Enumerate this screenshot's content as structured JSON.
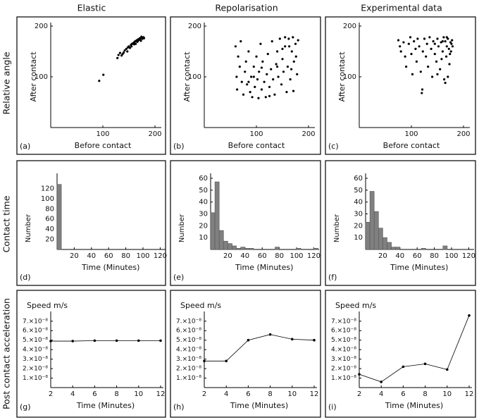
{
  "column_titles": [
    "Elastic",
    "Repolarisation",
    "Experimental data"
  ],
  "row_labels": [
    "Relative angle",
    "Contact time",
    "Post contact acceleration"
  ],
  "chart_data": [
    {
      "type": "scatter",
      "panel_label": "(a)",
      "x_label": "Before contact",
      "y_label": "After contact",
      "color": "#000000",
      "xlim": [
        0,
        200
      ],
      "ylim": [
        0,
        200
      ],
      "xticks": [
        100,
        200
      ],
      "yticks": [
        100,
        200
      ],
      "x": [
        93,
        101,
        128,
        130,
        133,
        136,
        140,
        142,
        145,
        148,
        150,
        152,
        154,
        156,
        158,
        160,
        162,
        163,
        165,
        167,
        168,
        170,
        172,
        173,
        175,
        176,
        178,
        179,
        155,
        160,
        166,
        171,
        174,
        147,
        138
      ],
      "values": [
        92,
        104,
        137,
        143,
        147,
        142,
        148,
        152,
        155,
        158,
        160,
        157,
        163,
        165,
        166,
        168,
        170,
        165,
        172,
        170,
        174,
        173,
        175,
        171,
        177,
        175,
        178,
        176,
        160,
        164,
        169,
        176,
        179,
        150,
        145
      ]
    },
    {
      "type": "scatter",
      "panel_label": "(b)",
      "x_label": "Before contact",
      "y_label": "After contact",
      "color": "#000000",
      "xlim": [
        0,
        200
      ],
      "ylim": [
        0,
        200
      ],
      "xticks": [
        100,
        200
      ],
      "yticks": [
        100,
        200
      ],
      "x": [
        60,
        62,
        63,
        65,
        68,
        70,
        72,
        75,
        78,
        80,
        82,
        85,
        88,
        90,
        92,
        95,
        97,
        100,
        102,
        104,
        105,
        108,
        110,
        112,
        115,
        118,
        120,
        122,
        125,
        128,
        130,
        132,
        135,
        138,
        140,
        142,
        145,
        148,
        150,
        152,
        155,
        158,
        160,
        162,
        165,
        168,
        170,
        172,
        175,
        178,
        180,
        163,
        167,
        171,
        176,
        150,
        140,
        125,
        110,
        95,
        85,
        155
      ],
      "values": [
        160,
        100,
        75,
        140,
        120,
        170,
        90,
        65,
        110,
        130,
        85,
        150,
        70,
        100,
        60,
        120,
        80,
        140,
        95,
        58,
        110,
        165,
        75,
        130,
        90,
        60,
        105,
        145,
        80,
        115,
        170,
        95,
        65,
        125,
        150,
        100,
        175,
        85,
        135,
        110,
        160,
        70,
        120,
        175,
        95,
        150,
        178,
        130,
        165,
        105,
        172,
        160,
        115,
        72,
        140,
        155,
        120,
        62,
        118,
        100,
        90,
        178
      ]
    },
    {
      "type": "scatter",
      "panel_label": "(c)",
      "x_label": "Before contact",
      "y_label": "After contact",
      "color": "#000000",
      "xlim": [
        0,
        200
      ],
      "ylim": [
        0,
        200
      ],
      "xticks": [
        100,
        200
      ],
      "yticks": [
        100,
        200
      ],
      "x": [
        75,
        78,
        80,
        85,
        88,
        90,
        95,
        98,
        100,
        102,
        105,
        108,
        110,
        112,
        115,
        118,
        120,
        121,
        122,
        125,
        128,
        130,
        132,
        135,
        138,
        140,
        142,
        145,
        148,
        150,
        152,
        155,
        157,
        160,
        162,
        163,
        165,
        167,
        168,
        170,
        172,
        173,
        175,
        176,
        178,
        179,
        170,
        165,
        158,
        150,
        145,
        160,
        168,
        174,
        177
      ],
      "values": [
        172,
        160,
        150,
        168,
        140,
        120,
        165,
        178,
        145,
        105,
        170,
        155,
        130,
        175,
        160,
        110,
        68,
        75,
        150,
        175,
        140,
        165,
        120,
        178,
        155,
        100,
        170,
        145,
        130,
        175,
        160,
        115,
        168,
        150,
        178,
        95,
        170,
        140,
        160,
        175,
        155,
        125,
        168,
        150,
        172,
        160,
        100,
        88,
        135,
        105,
        165,
        170,
        178,
        145,
        165
      ]
    },
    {
      "type": "histogram",
      "panel_label": "(d)",
      "x_label": "Time (Minutes)",
      "y_label": "Number",
      "color": "#808080",
      "xlim": [
        0,
        125
      ],
      "ylim": [
        0,
        140
      ],
      "xticks": [
        20,
        40,
        60,
        80,
        100,
        120
      ],
      "yticks": [
        20,
        40,
        60,
        80,
        100,
        120
      ],
      "bins": [
        0,
        5,
        10,
        15,
        20,
        25,
        30,
        35,
        40,
        45,
        50,
        55,
        60,
        65,
        70,
        75,
        80,
        85,
        90,
        95,
        100,
        105,
        110,
        115,
        120,
        125
      ],
      "values": [
        128,
        0,
        0,
        0,
        0,
        0,
        0,
        0,
        0,
        0,
        0,
        0,
        0,
        0,
        0,
        0,
        0,
        0,
        0,
        0,
        0,
        0,
        0,
        0,
        0
      ]
    },
    {
      "type": "histogram",
      "panel_label": "(e)",
      "x_label": "Time (Minutes)",
      "y_label": "Number",
      "color": "#808080",
      "xlim": [
        0,
        125
      ],
      "ylim": [
        0,
        60
      ],
      "xticks": [
        20,
        40,
        60,
        80,
        100,
        120
      ],
      "yticks": [
        10,
        20,
        30,
        40,
        50,
        60
      ],
      "bins": [
        0,
        5,
        10,
        15,
        20,
        25,
        30,
        35,
        40,
        45,
        50,
        55,
        60,
        65,
        70,
        75,
        80,
        85,
        90,
        95,
        100,
        105,
        110,
        115,
        120,
        125
      ],
      "values": [
        31,
        57,
        16,
        7,
        5,
        3,
        1,
        2,
        1,
        1,
        0,
        0,
        0,
        0,
        0,
        2,
        0,
        0,
        0,
        0,
        1,
        0,
        0,
        0,
        1
      ]
    },
    {
      "type": "histogram",
      "panel_label": "(f)",
      "x_label": "Time (Minutes)",
      "y_label": "Number",
      "color": "#808080",
      "xlim": [
        0,
        125
      ],
      "ylim": [
        0,
        60
      ],
      "xticks": [
        20,
        40,
        60,
        80,
        100,
        120
      ],
      "yticks": [
        10,
        20,
        30,
        40,
        50,
        60
      ],
      "bins": [
        0,
        5,
        10,
        15,
        20,
        25,
        30,
        35,
        40,
        45,
        50,
        55,
        60,
        65,
        70,
        75,
        80,
        85,
        90,
        95,
        100,
        105,
        110,
        115,
        120,
        125
      ],
      "values": [
        23,
        49,
        32,
        18,
        10,
        6,
        2,
        2,
        0,
        0,
        0,
        0,
        0,
        1,
        0,
        0,
        0,
        0,
        3,
        0,
        0,
        0,
        0,
        0,
        0
      ]
    },
    {
      "type": "line",
      "panel_label": "(g)",
      "x_label": "Time (Minutes)",
      "y_label": "Speed m/s",
      "color": "#000000",
      "xlim": [
        2,
        12
      ],
      "ylim": [
        0,
        7.8e-08
      ],
      "xticks": [
        2,
        4,
        6,
        8,
        10,
        12
      ],
      "yticks": [
        {
          "value": 1e-08,
          "label": "1.×10⁻⁸"
        },
        {
          "value": 2e-08,
          "label": "2.×10⁻⁸"
        },
        {
          "value": 3e-08,
          "label": "3.×10⁻⁸"
        },
        {
          "value": 4e-08,
          "label": "4.×10⁻⁸"
        },
        {
          "value": 5e-08,
          "label": "5.×10⁻⁸"
        },
        {
          "value": 6e-08,
          "label": "6.×10⁻⁸"
        },
        {
          "value": 7e-08,
          "label": "7.×10⁻⁸"
        }
      ],
      "x": [
        2,
        4,
        6,
        8,
        10,
        12
      ],
      "values": [
        4.9e-08,
        4.9e-08,
        4.95e-08,
        4.95e-08,
        4.95e-08,
        4.95e-08
      ]
    },
    {
      "type": "line",
      "panel_label": "(h)",
      "x_label": "Time (Minutes)",
      "y_label": "Speed m/s",
      "color": "#000000",
      "xlim": [
        2,
        12
      ],
      "ylim": [
        0,
        7.8e-08
      ],
      "xticks": [
        2,
        4,
        6,
        8,
        10,
        12
      ],
      "yticks": [
        {
          "value": 1e-08,
          "label": "1.×10⁻⁸"
        },
        {
          "value": 2e-08,
          "label": "2.×10⁻⁸"
        },
        {
          "value": 3e-08,
          "label": "3.×10⁻⁸"
        },
        {
          "value": 4e-08,
          "label": "4.×10⁻⁸"
        },
        {
          "value": 5e-08,
          "label": "5.×10⁻⁸"
        },
        {
          "value": 6e-08,
          "label": "6.×10⁻⁸"
        },
        {
          "value": 7e-08,
          "label": "7.×10⁻⁸"
        }
      ],
      "x": [
        2,
        4,
        6,
        8,
        10,
        12
      ],
      "values": [
        2.8e-08,
        2.8e-08,
        5e-08,
        5.6e-08,
        5.1e-08,
        5e-08
      ]
    },
    {
      "type": "line",
      "panel_label": "(i)",
      "x_label": "Time (Minutes)",
      "y_label": "Speed m/s",
      "color": "#000000",
      "xlim": [
        2,
        12
      ],
      "ylim": [
        0,
        7.8e-08
      ],
      "xticks": [
        2,
        4,
        6,
        8,
        10,
        12
      ],
      "yticks": [
        {
          "value": 1e-08,
          "label": "1.×10⁻⁸"
        },
        {
          "value": 2e-08,
          "label": "2.×10⁻⁸"
        },
        {
          "value": 3e-08,
          "label": "3.×10⁻⁸"
        },
        {
          "value": 4e-08,
          "label": "4.×10⁻⁸"
        },
        {
          "value": 5e-08,
          "label": "5.×10⁻⁸"
        },
        {
          "value": 6e-08,
          "label": "6.×10⁻⁸"
        },
        {
          "value": 7e-08,
          "label": "7.×10⁻⁸"
        }
      ],
      "x": [
        2,
        4,
        6,
        8,
        10,
        12
      ],
      "values": [
        1.4e-08,
        6e-09,
        2.2e-08,
        2.5e-08,
        1.9e-08,
        7.6e-08
      ]
    }
  ]
}
